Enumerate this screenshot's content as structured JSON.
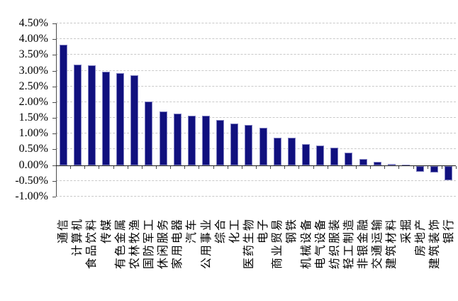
{
  "chart_data": {
    "type": "bar",
    "title": "",
    "xlabel": "",
    "ylabel": "",
    "unit": "percent",
    "legend": "none",
    "grid": "horizontal-dashed",
    "ylim": [
      -1.0,
      4.5
    ],
    "y_tick_labels": [
      "4.50%",
      "4.00%",
      "3.50%",
      "3.00%",
      "2.50%",
      "2.00%",
      "1.50%",
      "1.00%",
      "0.50%",
      "0.00%",
      "-0.50%",
      "-1.00%"
    ],
    "y_tick_values": [
      4.5,
      4.0,
      3.5,
      3.0,
      2.5,
      2.0,
      1.5,
      1.0,
      0.5,
      0.0,
      -0.5,
      -1.0
    ],
    "categories": [
      "通信",
      "计算机",
      "食品饮料",
      "传媒",
      "有色金属",
      "农林牧渔",
      "国防军工",
      "休闲服务",
      "家用电器",
      "汽车",
      "公用事业",
      "综合",
      "化工",
      "医药生物",
      "电子",
      "商业贸易",
      "钢铁",
      "机械设备",
      "电气设备",
      "纺织服装",
      "轻工制造",
      "非银金融",
      "交通运输",
      "建筑材料",
      "采掘",
      "房地产",
      "建筑装饰",
      "银行"
    ],
    "values": [
      3.84,
      3.21,
      3.18,
      2.97,
      2.93,
      2.87,
      2.02,
      1.71,
      1.64,
      1.58,
      1.58,
      1.45,
      1.32,
      1.28,
      1.19,
      0.89,
      0.88,
      0.68,
      0.62,
      0.56,
      0.4,
      0.21,
      0.11,
      0.05,
      0.01,
      -0.19,
      -0.21,
      -0.45
    ],
    "colors": {
      "bar_fill": "#10107E",
      "bar_edge": "#9494CE",
      "gridline": "#C9C9C9",
      "axis": "#1A1A1A",
      "text": "#000000",
      "background": "#FFFFFF"
    }
  }
}
